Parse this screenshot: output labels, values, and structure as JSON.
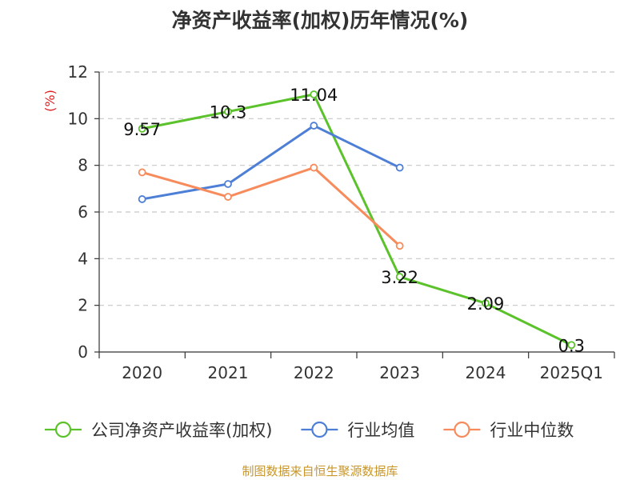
{
  "chart_data": {
    "type": "line",
    "title": "净资产收益率(加权)历年情况(%)",
    "ylabel": "(%)",
    "xlabel": "",
    "categories": [
      "2020",
      "2021",
      "2022",
      "2023",
      "2024",
      "2025Q1"
    ],
    "ylim": [
      0,
      12
    ],
    "yticks": [
      0,
      2,
      4,
      6,
      8,
      10,
      12
    ],
    "grid": true,
    "legend_position": "bottom",
    "series": [
      {
        "name": "公司净资产收益率(加权)",
        "color": "#5bc22b",
        "values": [
          9.57,
          10.3,
          11.04,
          3.22,
          2.09,
          0.3
        ],
        "labels": [
          "9.57",
          "10.3",
          "11.04",
          "3.22",
          "2.09",
          "0.3"
        ]
      },
      {
        "name": "行业均值",
        "color": "#4e7fd7",
        "values": [
          6.55,
          7.2,
          9.7,
          7.9,
          null,
          null
        ]
      },
      {
        "name": "行业中位数",
        "color": "#f78b5c",
        "values": [
          7.7,
          6.65,
          7.9,
          4.55,
          null,
          null
        ]
      }
    ]
  },
  "source": "制图数据来自恒生聚源数据库"
}
